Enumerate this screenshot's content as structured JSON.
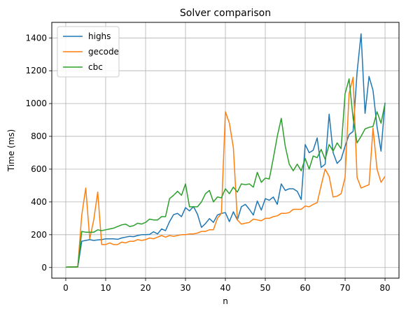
{
  "chart_data": {
    "type": "line",
    "title": "Solver comparison",
    "xlabel": "n",
    "ylabel": "Time (ms)",
    "xlim": [
      -3.5,
      83.5
    ],
    "ylim": [
      -65,
      1495
    ],
    "xticks": [
      0,
      10,
      20,
      30,
      40,
      50,
      60,
      70,
      80
    ],
    "yticks": [
      0,
      200,
      400,
      600,
      800,
      1000,
      1200,
      1400
    ],
    "grid": true,
    "legend_position": "top-left",
    "series": [
      {
        "name": "highs",
        "color": "#1f77b4",
        "x": [
          0,
          1,
          2,
          3,
          4,
          5,
          6,
          7,
          8,
          9,
          10,
          11,
          12,
          13,
          14,
          15,
          16,
          17,
          18,
          19,
          20,
          21,
          22,
          23,
          24,
          25,
          26,
          27,
          28,
          29,
          30,
          31,
          32,
          33,
          34,
          35,
          36,
          37,
          38,
          39,
          40,
          41,
          42,
          43,
          44,
          45,
          46,
          47,
          48,
          49,
          50,
          51,
          52,
          53,
          54,
          55,
          56,
          57,
          58,
          59,
          60,
          61,
          62,
          63,
          64,
          65,
          66,
          67,
          68,
          69,
          70,
          71,
          72,
          73,
          74,
          75,
          76,
          77,
          78,
          79,
          80
        ],
        "y": [
          2,
          3,
          3,
          3,
          160,
          165,
          170,
          165,
          168,
          170,
          175,
          175,
          175,
          172,
          180,
          185,
          190,
          188,
          195,
          200,
          200,
          202,
          218,
          205,
          235,
          225,
          280,
          322,
          330,
          310,
          365,
          345,
          372,
          325,
          245,
          268,
          298,
          275,
          320,
          330,
          335,
          280,
          340,
          290,
          370,
          385,
          355,
          320,
          405,
          350,
          420,
          410,
          430,
          385,
          510,
          470,
          480,
          480,
          465,
          415,
          750,
          700,
          715,
          790,
          610,
          630,
          935,
          700,
          635,
          660,
          740,
          810,
          830,
          1190,
          1425,
          940,
          1165,
          1080,
          860,
          710,
          1005
        ]
      },
      {
        "name": "gecode",
        "color": "#ff7f0e",
        "x": [
          0,
          1,
          2,
          3,
          4,
          5,
          6,
          7,
          8,
          9,
          10,
          11,
          12,
          13,
          14,
          15,
          16,
          17,
          18,
          19,
          20,
          21,
          22,
          23,
          24,
          25,
          26,
          27,
          28,
          29,
          30,
          31,
          32,
          33,
          34,
          35,
          36,
          37,
          38,
          39,
          40,
          41,
          42,
          43,
          44,
          45,
          46,
          47,
          48,
          49,
          50,
          51,
          52,
          53,
          54,
          55,
          56,
          57,
          58,
          59,
          60,
          61,
          62,
          63,
          64,
          65,
          66,
          67,
          68,
          69,
          70,
          71,
          72,
          73,
          74,
          75,
          76,
          77,
          78,
          79,
          80
        ],
        "y": [
          2,
          3,
          3,
          3,
          320,
          485,
          175,
          290,
          460,
          140,
          140,
          150,
          140,
          140,
          155,
          150,
          160,
          160,
          170,
          165,
          170,
          180,
          175,
          185,
          195,
          185,
          195,
          190,
          195,
          200,
          200,
          205,
          205,
          210,
          220,
          220,
          230,
          230,
          300,
          330,
          950,
          880,
          730,
          290,
          265,
          270,
          275,
          295,
          290,
          285,
          300,
          300,
          310,
          315,
          330,
          330,
          335,
          355,
          355,
          355,
          375,
          370,
          385,
          395,
          500,
          600,
          555,
          430,
          435,
          450,
          550,
          1060,
          1160,
          550,
          485,
          495,
          505,
          850,
          600,
          520,
          555
        ]
      },
      {
        "name": "cbc",
        "color": "#2ca02c",
        "x": [
          0,
          1,
          2,
          3,
          4,
          5,
          6,
          7,
          8,
          9,
          10,
          11,
          12,
          13,
          14,
          15,
          16,
          17,
          18,
          19,
          20,
          21,
          22,
          23,
          24,
          25,
          26,
          27,
          28,
          29,
          30,
          31,
          32,
          33,
          34,
          35,
          36,
          37,
          38,
          39,
          40,
          41,
          42,
          43,
          44,
          45,
          46,
          47,
          48,
          49,
          50,
          51,
          52,
          53,
          54,
          55,
          56,
          57,
          58,
          59,
          60,
          61,
          62,
          63,
          64,
          65,
          66,
          67,
          68,
          69,
          70,
          71,
          72,
          73,
          74,
          75,
          76,
          77,
          78,
          79,
          80
        ],
        "y": [
          2,
          3,
          3,
          5,
          220,
          215,
          215,
          215,
          230,
          225,
          230,
          235,
          240,
          250,
          260,
          265,
          250,
          255,
          270,
          265,
          275,
          295,
          290,
          290,
          310,
          310,
          420,
          440,
          465,
          440,
          510,
          370,
          370,
          370,
          400,
          450,
          470,
          400,
          430,
          425,
          480,
          450,
          490,
          460,
          510,
          505,
          510,
          490,
          580,
          520,
          545,
          540,
          665,
          800,
          910,
          740,
          630,
          590,
          630,
          590,
          665,
          600,
          680,
          670,
          720,
          660,
          750,
          710,
          760,
          725,
          1060,
          1150,
          910,
          760,
          800,
          845,
          855,
          860,
          950,
          880,
          1000
        ]
      }
    ]
  }
}
